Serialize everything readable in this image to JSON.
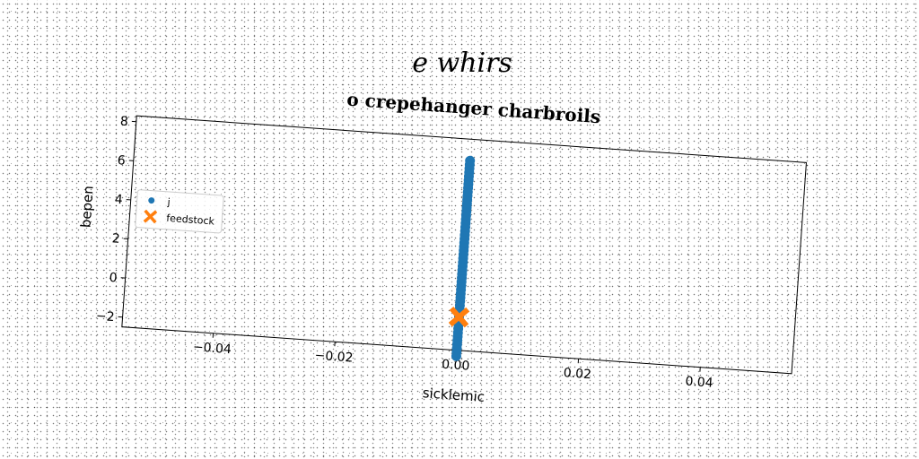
{
  "colors": {
    "series_blue": "#1f77b4",
    "marker_orange": "#ff7f0e"
  },
  "chart_data": {
    "type": "scatter",
    "suptitle": "e whirs",
    "title": "o crepehanger charbroils",
    "xlabel": "sicklemic",
    "ylabel": "bepen",
    "xlim": [
      -0.055,
      0.055
    ],
    "ylim": [
      -2.5,
      8.3
    ],
    "xticks": [
      -0.04,
      -0.02,
      0.0,
      0.02,
      0.04
    ],
    "xtick_labels": [
      "−0.04",
      "−0.02",
      "0.00",
      "0.02",
      "0.04"
    ],
    "yticks": [
      -2,
      0,
      2,
      4,
      6,
      8
    ],
    "ytick_labels": [
      "−2",
      "0",
      "2",
      "4",
      "6",
      "8"
    ],
    "grid": false,
    "legend_position": "center-left",
    "series": [
      {
        "name": "j",
        "marker": "circle",
        "color": "#1f77b4",
        "x": [
          0.0,
          0.0,
          0.0,
          0.0,
          0.0,
          0.0,
          0.0,
          0.0,
          0.0,
          0.0,
          0.0,
          0.0,
          0.0,
          0.0,
          0.0,
          0.0,
          0.0,
          0.0,
          0.0,
          0.0,
          0.0,
          0.0,
          0.0,
          0.0,
          0.0,
          0.0,
          0.0,
          0.0,
          0.0,
          0.0,
          0.0,
          0.0,
          0.0,
          0.0,
          0.0,
          0.0,
          0.0,
          0.0,
          0.0,
          0.0,
          0.0,
          0.0,
          0.0,
          0.0,
          0.0,
          0.0,
          0.0,
          0.0,
          0.0,
          0.0,
          0.0
        ],
        "y": [
          -2.8,
          -2.6,
          -2.4,
          -2.2,
          -2.0,
          -1.8,
          -1.6,
          -1.4,
          -1.2,
          -1.0,
          -0.8,
          -0.6,
          -0.4,
          -0.2,
          0.0,
          0.2,
          0.4,
          0.6,
          0.8,
          1.0,
          1.2,
          1.4,
          1.6,
          1.8,
          2.0,
          2.2,
          2.4,
          2.6,
          2.8,
          3.0,
          3.2,
          3.4,
          3.6,
          3.8,
          4.0,
          4.2,
          4.4,
          4.6,
          4.8,
          5.0,
          5.2,
          5.4,
          5.6,
          5.8,
          6.0,
          6.2,
          6.4,
          6.6,
          6.8,
          7.0,
          7.2
        ]
      },
      {
        "name": "feedstock",
        "marker": "x",
        "color": "#ff7f0e",
        "x": [
          0.0
        ],
        "y": [
          -0.8
        ]
      }
    ]
  }
}
